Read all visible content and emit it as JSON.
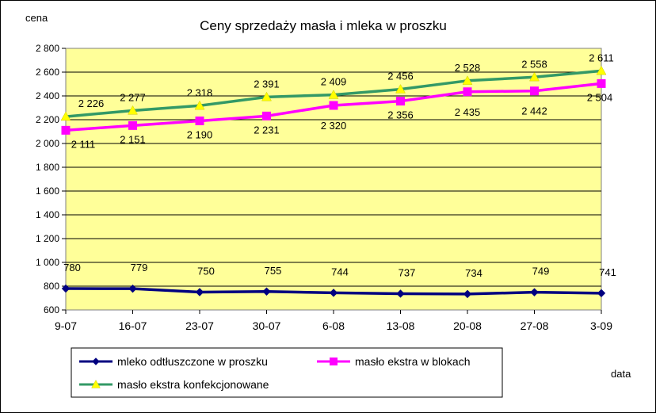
{
  "chart_data": {
    "type": "line",
    "title": "Ceny sprzedaży masła i mleka w proszku",
    "ylabel": "cena",
    "xlabel": "data",
    "ylim": [
      600,
      2800
    ],
    "ystep": 200,
    "ytick_labels": [
      "600",
      "800",
      "1 000",
      "1 200",
      "1 400",
      "1 600",
      "1 800",
      "2 000",
      "2 200",
      "2 400",
      "2 600",
      "2 800"
    ],
    "categories": [
      "9-07",
      "16-07",
      "23-07",
      "30-07",
      "6-08",
      "13-08",
      "20-08",
      "27-08",
      "3-09"
    ],
    "plot_background": "#ffff99",
    "grid": "horizontal",
    "legend_position": "bottom",
    "series": [
      {
        "name": "mleko odtłuszczone w proszku",
        "values": [
          780,
          779,
          750,
          755,
          744,
          737,
          734,
          749,
          741
        ],
        "labels": [
          "780",
          "779",
          "750",
          "755",
          "744",
          "737",
          "734",
          "749",
          "741"
        ],
        "color": "#000080",
        "marker": "diamond",
        "marker_color": "#000080"
      },
      {
        "name": "masło ekstra w blokach",
        "values": [
          2111,
          2151,
          2190,
          2231,
          2320,
          2356,
          2435,
          2442,
          2504
        ],
        "labels": [
          "2 111",
          "2 151",
          "2 190",
          "2 231",
          "2 320",
          "2 356",
          "2 435",
          "2 442",
          "2 504"
        ],
        "color": "#ff00ff",
        "marker": "square",
        "marker_color": "#ff00ff"
      },
      {
        "name": "masło ekstra konfekcjonowane",
        "values": [
          2226,
          2277,
          2318,
          2391,
          2409,
          2456,
          2528,
          2558,
          2611
        ],
        "labels": [
          "2 226",
          "2 277",
          "2 318",
          "2 391",
          "2 409",
          "2 456",
          "2 528",
          "2 558",
          "2 611"
        ],
        "color": "#339966",
        "marker": "triangle",
        "marker_color": "#ffff00"
      }
    ]
  }
}
